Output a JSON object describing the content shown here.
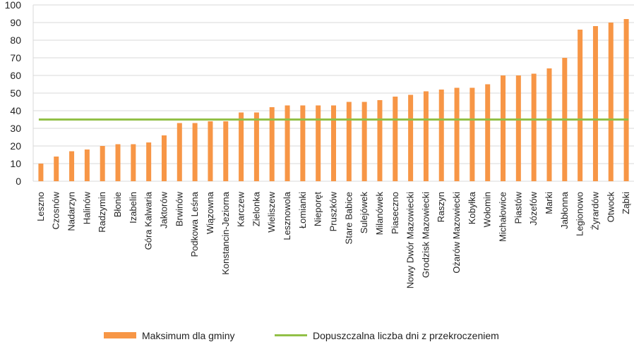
{
  "chart_data": {
    "type": "bar",
    "categories": [
      "Leszno",
      "Czosnów",
      "Nadarzyn",
      "Halinów",
      "Radzymin",
      "Błonie",
      "Izabelin",
      "Góra Kalwaria",
      "Jaktorów",
      "Brwinów",
      "Podkowa Leśna",
      "Wiązowna",
      "Konstancin-Jeziorna",
      "Karczew",
      "Zielonka",
      "Wieliszew",
      "Lesznowola",
      "Łomianki",
      "Nieporęt",
      "Pruszków",
      "Stare Babice",
      "Sulejówek",
      "Milanówek",
      "Piaseczno",
      "Nowy Dwór Mazowiecki",
      "Grodzisk Mazowiecki",
      "Raszyn",
      "Ożarów Mazowiecki",
      "Kobyłka",
      "Wołomin",
      "Michałowice",
      "Piastów",
      "Józefów",
      "Marki",
      "Jabłonna",
      "Legionowo",
      "Żyrardów",
      "Otwock",
      "Ząbki"
    ],
    "series": [
      {
        "name": "Maksimum dla gminy",
        "type": "bar",
        "color": "#F79646",
        "values": [
          10,
          14,
          17,
          18,
          20,
          21,
          21,
          22,
          26,
          33,
          33,
          34,
          34,
          39,
          39,
          42,
          43,
          43,
          43,
          43,
          45,
          45,
          46,
          48,
          49,
          51,
          52,
          53,
          53,
          55,
          60,
          60,
          61,
          64,
          70,
          86,
          88,
          90,
          92
        ]
      },
      {
        "name": "Dopuszczalna liczba dni z przekroczeniem",
        "type": "line",
        "color": "#92C047",
        "value": 35
      }
    ],
    "title": "",
    "xlabel": "",
    "ylabel": "",
    "ylim": [
      0,
      100
    ],
    "yticks": [
      0,
      10,
      20,
      30,
      40,
      50,
      60,
      70,
      80,
      90,
      100
    ],
    "grid": true,
    "legend_position": "bottom"
  }
}
